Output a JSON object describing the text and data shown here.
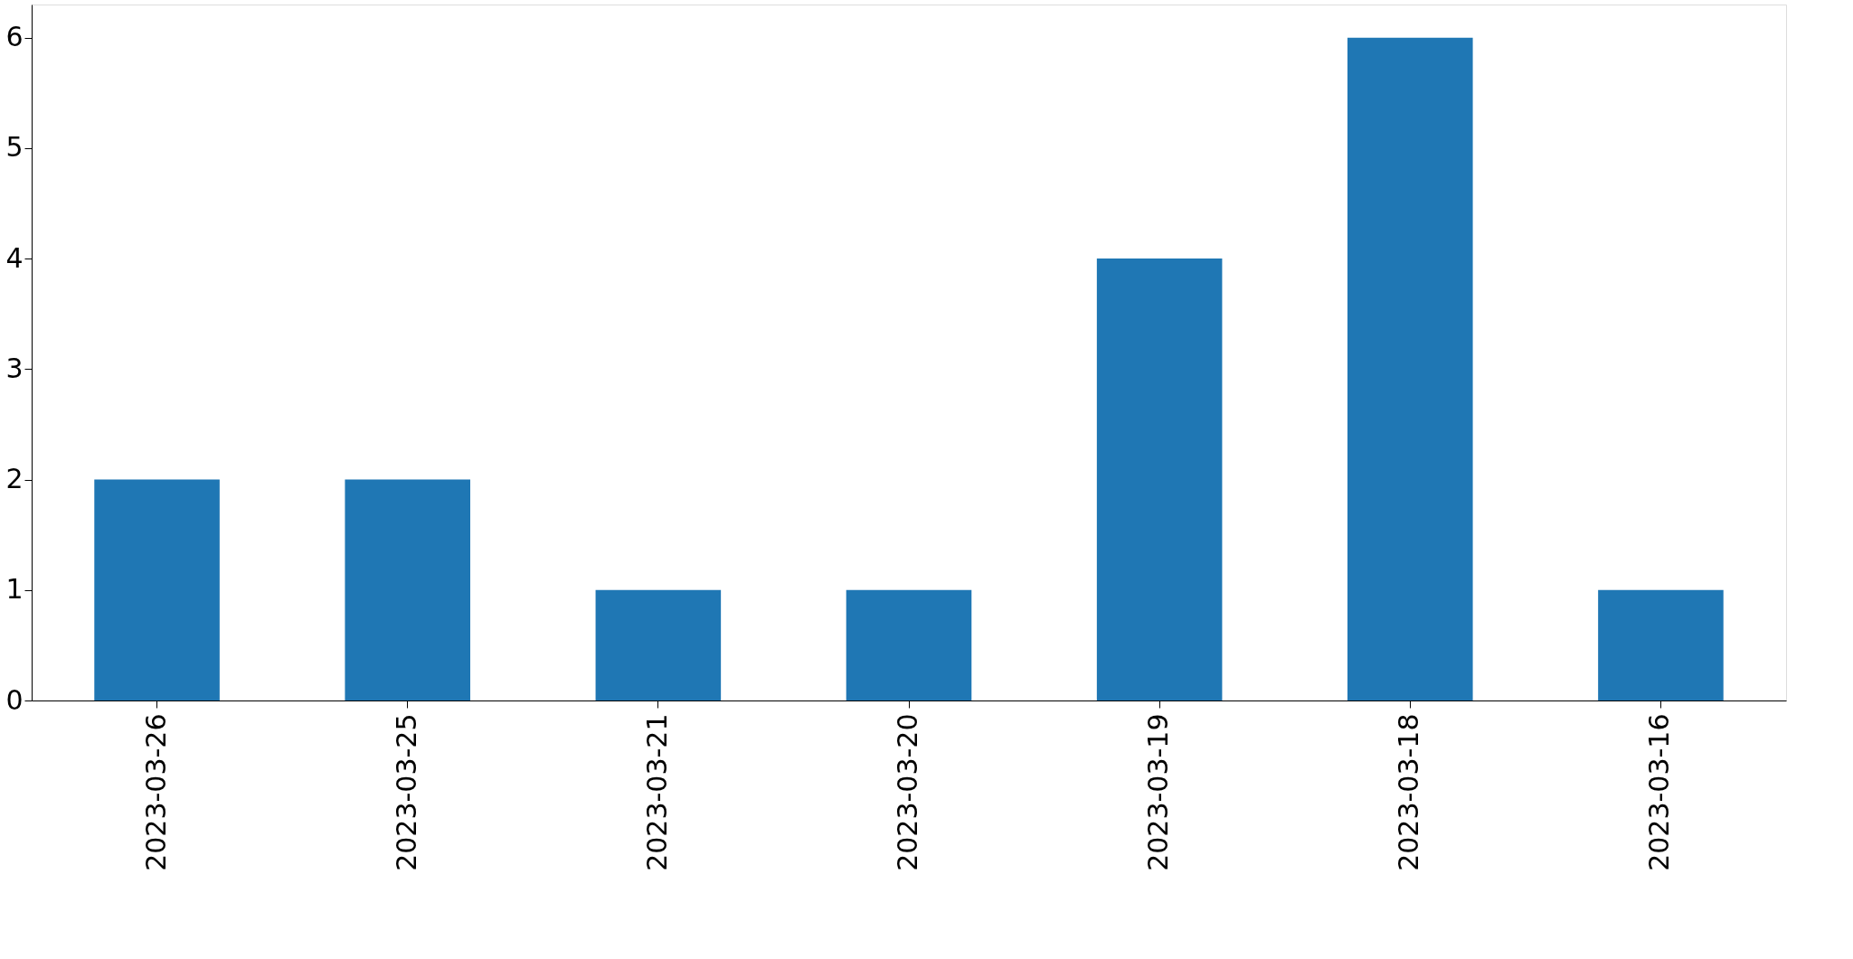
{
  "chart_data": {
    "type": "bar",
    "categories": [
      "2023-03-26",
      "2023-03-25",
      "2023-03-21",
      "2023-03-20",
      "2023-03-19",
      "2023-03-18",
      "2023-03-16"
    ],
    "values": [
      2,
      2,
      1,
      1,
      4,
      6,
      1
    ],
    "color": "#1f77b4",
    "ylim": [
      0,
      6.3
    ],
    "yticks": [
      0,
      1,
      2,
      3,
      4,
      5,
      6
    ],
    "grid": false
  }
}
